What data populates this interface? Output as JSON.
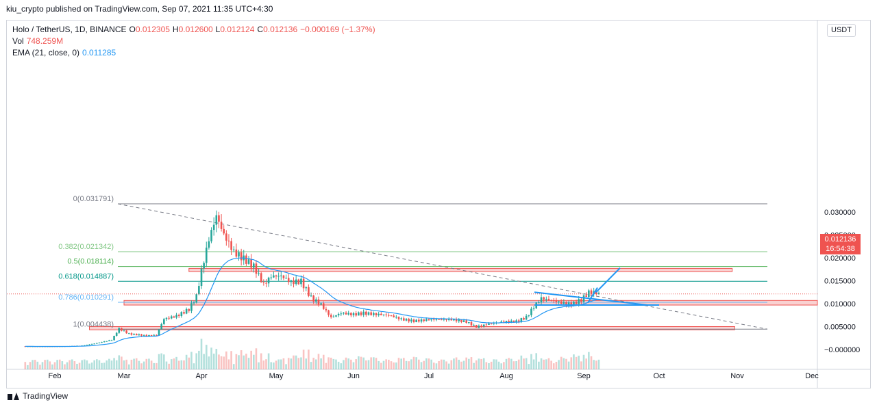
{
  "publisher": "kiu_crypto published on TradingView.com, Sep 07, 2021 11:35 UTC+4:30",
  "legend": {
    "symbol": "Holo / TetherUS, 1D, BINANCE",
    "open_label": "O",
    "open": "0.012305",
    "high_label": "H",
    "high": "0.012600",
    "low_label": "L",
    "low": "0.012124",
    "close_label": "C",
    "close": "0.012136",
    "change": "−0.000169 (−1.37%)",
    "vol_label": "Vol",
    "vol": "748.259M",
    "ema_label": "EMA (21, close, 0)",
    "ema": "0.011285"
  },
  "currency_button": "USDT",
  "price_tag": {
    "price": "0.012136",
    "countdown": "16:54:38"
  },
  "brand": "TradingView",
  "colors": {
    "up": "#26a69a",
    "down": "#ef5350",
    "ema": "#2196f3",
    "fib": "#4caf50",
    "zone_fill": "#f7c6c6",
    "zone_stroke": "#ef5350",
    "pen": "#2196f3"
  },
  "chart_data": {
    "type": "candlestick",
    "title": "Holo / TetherUS, 1D, BINANCE",
    "x_ticks": [
      "Feb",
      "Mar",
      "Apr",
      "May",
      "Jun",
      "Jul",
      "Aug",
      "Sep",
      "Oct",
      "Nov",
      "Dec"
    ],
    "y_ticks": [
      "0.030000",
      "0.025000",
      "0.020000",
      "0.015000",
      "0.010000",
      "0.005000",
      "−0.000000"
    ],
    "ylim": [
      -0.0015,
      0.0325
    ],
    "fib_levels": [
      {
        "ratio": "0",
        "price": 0.031791,
        "label": "0(0.031791)"
      },
      {
        "ratio": "0.382",
        "price": 0.021342,
        "label": "0.382(0.021342)"
      },
      {
        "ratio": "0.5",
        "price": 0.018114,
        "label": "0.5(0.018114)"
      },
      {
        "ratio": "0.618",
        "price": 0.014887,
        "label": "0.618(0.014887)"
      },
      {
        "ratio": "0.786",
        "price": 0.010291,
        "label": "0.786(0.010291)"
      },
      {
        "ratio": "1",
        "price": 0.004438,
        "label": "1(0.004438)"
      }
    ],
    "zones": [
      {
        "from": "2021-03-27",
        "to": "2021-10-30",
        "low": 0.017,
        "high": 0.0177
      },
      {
        "from": "2021-03-01",
        "to": "2021-12-31",
        "low": 0.0097,
        "high": 0.0107
      },
      {
        "from": "2021-02-15",
        "to": "2021-10-31",
        "low": 0.0043,
        "high": 0.005
      }
    ],
    "close_series": [
      {
        "date": "2021-01-20",
        "close": 0.0007
      },
      {
        "date": "2021-02-05",
        "close": 0.0007
      },
      {
        "date": "2021-02-12",
        "close": 0.0008
      },
      {
        "date": "2021-02-18",
        "close": 0.0013
      },
      {
        "date": "2021-02-24",
        "close": 0.002
      },
      {
        "date": "2021-02-27",
        "close": 0.0045
      },
      {
        "date": "2021-03-03",
        "close": 0.0035
      },
      {
        "date": "2021-03-10",
        "close": 0.0032
      },
      {
        "date": "2021-03-14",
        "close": 0.0034
      },
      {
        "date": "2021-03-17",
        "close": 0.0072
      },
      {
        "date": "2021-03-22",
        "close": 0.0078
      },
      {
        "date": "2021-03-27",
        "close": 0.0092
      },
      {
        "date": "2021-03-30",
        "close": 0.012
      },
      {
        "date": "2021-04-01",
        "close": 0.0175
      },
      {
        "date": "2021-04-04",
        "close": 0.024
      },
      {
        "date": "2021-04-07",
        "close": 0.0285
      },
      {
        "date": "2021-04-10",
        "close": 0.024
      },
      {
        "date": "2021-04-14",
        "close": 0.02
      },
      {
        "date": "2021-04-18",
        "close": 0.0185
      },
      {
        "date": "2021-04-22",
        "close": 0.017
      },
      {
        "date": "2021-04-26",
        "close": 0.0135
      },
      {
        "date": "2021-04-29",
        "close": 0.0155
      },
      {
        "date": "2021-05-03",
        "close": 0.016
      },
      {
        "date": "2021-05-07",
        "close": 0.015
      },
      {
        "date": "2021-05-11",
        "close": 0.0155
      },
      {
        "date": "2021-05-15",
        "close": 0.012
      },
      {
        "date": "2021-05-19",
        "close": 0.0105
      },
      {
        "date": "2021-05-23",
        "close": 0.0075
      },
      {
        "date": "2021-05-27",
        "close": 0.0085
      },
      {
        "date": "2021-06-01",
        "close": 0.008
      },
      {
        "date": "2021-06-05",
        "close": 0.0082
      },
      {
        "date": "2021-06-10",
        "close": 0.0078
      },
      {
        "date": "2021-06-15",
        "close": 0.0075
      },
      {
        "date": "2021-06-20",
        "close": 0.0065
      },
      {
        "date": "2021-06-25",
        "close": 0.006
      },
      {
        "date": "2021-07-01",
        "close": 0.0062
      },
      {
        "date": "2021-07-10",
        "close": 0.0061
      },
      {
        "date": "2021-07-16",
        "close": 0.0057
      },
      {
        "date": "2021-07-20",
        "close": 0.0047
      },
      {
        "date": "2021-07-25",
        "close": 0.0055
      },
      {
        "date": "2021-07-31",
        "close": 0.0062
      },
      {
        "date": "2021-08-05",
        "close": 0.0064
      },
      {
        "date": "2021-08-09",
        "close": 0.0075
      },
      {
        "date": "2021-08-12",
        "close": 0.01
      },
      {
        "date": "2021-08-15",
        "close": 0.012
      },
      {
        "date": "2021-08-19",
        "close": 0.0115
      },
      {
        "date": "2021-08-23",
        "close": 0.0108
      },
      {
        "date": "2021-08-27",
        "close": 0.0102
      },
      {
        "date": "2021-08-31",
        "close": 0.011
      },
      {
        "date": "2021-09-03",
        "close": 0.0125
      },
      {
        "date": "2021-09-07",
        "close": 0.012136
      }
    ]
  }
}
